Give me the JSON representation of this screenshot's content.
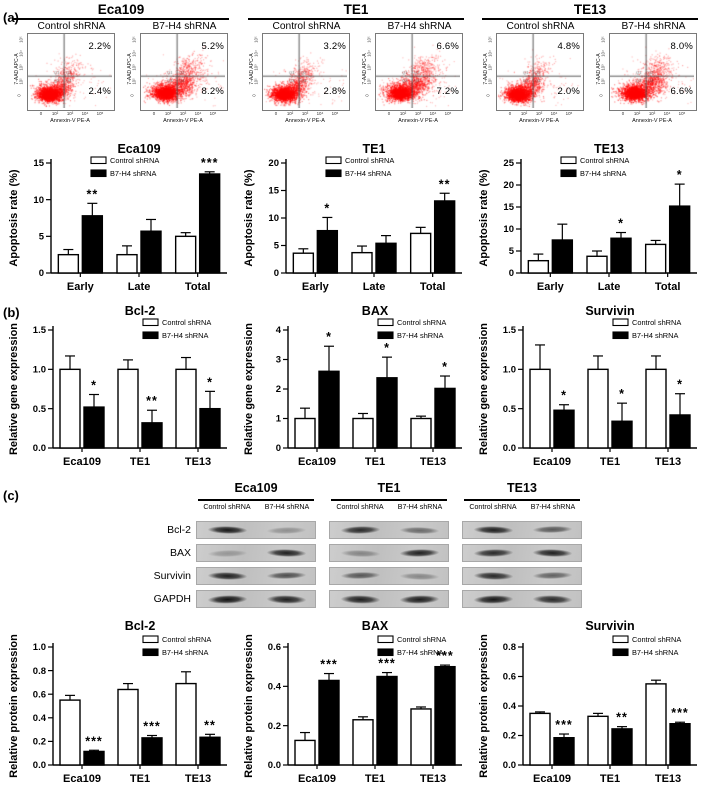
{
  "panel_labels": {
    "a": "(a)",
    "b": "(b)",
    "c": "(c)"
  },
  "legend": {
    "control": "Control shRNA",
    "knockdown": "B7-H4 shRNA"
  },
  "flow": {
    "x_axis": "Annexin-V PE-A",
    "y_axis": "7-AAD APC-A",
    "x_ticks": [
      "0",
      "10²",
      "10³",
      "10⁴",
      "10⁵"
    ],
    "y_ticks": [
      "10⁵",
      "10⁴",
      "10³",
      "10²",
      "0"
    ],
    "groups": [
      {
        "cell_line": "Eca109",
        "plots": [
          {
            "label": "Control shRNA",
            "variant": "control",
            "upper_right_pct": "2.2%",
            "lower_right_pct": "2.4%"
          },
          {
            "label": "B7-H4 shRNA",
            "variant": "knockdown",
            "upper_right_pct": "5.2%",
            "lower_right_pct": "8.2%"
          }
        ]
      },
      {
        "cell_line": "TE1",
        "plots": [
          {
            "label": "Control shRNA",
            "variant": "control",
            "upper_right_pct": "3.2%",
            "lower_right_pct": "2.8%"
          },
          {
            "label": "B7-H4 shRNA",
            "variant": "knockdown",
            "upper_right_pct": "6.6%",
            "lower_right_pct": "7.2%"
          }
        ]
      },
      {
        "cell_line": "TE13",
        "plots": [
          {
            "label": "Control shRNA",
            "variant": "control",
            "upper_right_pct": "4.8%",
            "lower_right_pct": "2.0%"
          },
          {
            "label": "B7-H4 shRNA",
            "variant": "knockdown",
            "upper_right_pct": "8.0%",
            "lower_right_pct": "6.6%"
          }
        ]
      }
    ]
  },
  "chart_data": [
    {
      "id": "apoptosis-eca109",
      "type": "bar",
      "panel": "a",
      "title": "Eca109",
      "ylabel": "Apoptosis rate (%)",
      "ylim": [
        0,
        15
      ],
      "yticks": [
        0,
        5,
        10,
        15
      ],
      "ytick_labels": [
        "0",
        "5",
        "10",
        "15"
      ],
      "categories": [
        "Early",
        "Late",
        "Total"
      ],
      "series": [
        {
          "name": "Control shRNA",
          "values": [
            2.5,
            2.5,
            5.0
          ],
          "errors": [
            0.7,
            1.2,
            0.5
          ]
        },
        {
          "name": "B7-H4 shRNA",
          "values": [
            7.8,
            5.7,
            13.5
          ],
          "errors": [
            1.7,
            1.6,
            0.3
          ]
        }
      ],
      "significance": [
        "**",
        "",
        "***"
      ],
      "legend_position": "top-center",
      "grid": false
    },
    {
      "id": "apoptosis-te1",
      "type": "bar",
      "panel": "a",
      "title": "TE1",
      "ylabel": "Apoptosis rate (%)",
      "ylim": [
        0,
        20
      ],
      "yticks": [
        0,
        5,
        10,
        15,
        20
      ],
      "ytick_labels": [
        "0",
        "5",
        "10",
        "15",
        "20"
      ],
      "categories": [
        "Early",
        "Late",
        "Total"
      ],
      "series": [
        {
          "name": "Control shRNA",
          "values": [
            3.6,
            3.7,
            7.2
          ],
          "errors": [
            0.8,
            1.2,
            1.1
          ]
        },
        {
          "name": "B7-H4 shRNA",
          "values": [
            7.7,
            5.4,
            13.1
          ],
          "errors": [
            2.4,
            1.4,
            1.4
          ]
        }
      ],
      "significance": [
        "*",
        "",
        "**"
      ],
      "legend_position": "top-center",
      "grid": false
    },
    {
      "id": "apoptosis-te13",
      "type": "bar",
      "panel": "a",
      "title": "TE13",
      "ylabel": "Apoptosis rate (%)",
      "ylim": [
        0,
        25
      ],
      "yticks": [
        0,
        5,
        10,
        15,
        20,
        25
      ],
      "ytick_labels": [
        "0",
        "5",
        "10",
        "15",
        "20",
        "25"
      ],
      "categories": [
        "Early",
        "Late",
        "Total"
      ],
      "series": [
        {
          "name": "Control shRNA",
          "values": [
            2.8,
            3.8,
            6.5
          ],
          "errors": [
            1.5,
            1.2,
            0.9
          ]
        },
        {
          "name": "B7-H4 shRNA",
          "values": [
            7.5,
            7.9,
            15.2
          ],
          "errors": [
            3.6,
            1.3,
            5.0
          ]
        }
      ],
      "significance": [
        "",
        "*",
        "*"
      ],
      "legend_position": "top-center",
      "grid": false
    },
    {
      "id": "gene-bcl2",
      "type": "bar",
      "panel": "b",
      "title": "Bcl-2",
      "ylabel": "Relative gene expression",
      "ylim": [
        0,
        1.5
      ],
      "yticks": [
        0,
        0.5,
        1.0,
        1.5
      ],
      "ytick_labels": [
        "0.0",
        "0.5",
        "1.0",
        "1.5"
      ],
      "categories": [
        "Eca109",
        "TE1",
        "TE13"
      ],
      "series": [
        {
          "name": "Control shRNA",
          "values": [
            1.0,
            1.0,
            1.0
          ],
          "errors": [
            0.17,
            0.12,
            0.15
          ]
        },
        {
          "name": "B7-H4 shRNA",
          "values": [
            0.52,
            0.32,
            0.5
          ],
          "errors": [
            0.16,
            0.16,
            0.22
          ]
        }
      ],
      "significance": [
        "*",
        "**",
        "*"
      ],
      "legend_position": "top-right",
      "grid": false
    },
    {
      "id": "gene-bax",
      "type": "bar",
      "panel": "b",
      "title": "BAX",
      "ylabel": "Relative gene expression",
      "ylim": [
        0,
        4
      ],
      "yticks": [
        0,
        1,
        2,
        3,
        4
      ],
      "ytick_labels": [
        "0",
        "1",
        "2",
        "3",
        "4"
      ],
      "categories": [
        "Eca109",
        "TE1",
        "TE13"
      ],
      "series": [
        {
          "name": "Control shRNA",
          "values": [
            1.0,
            1.0,
            1.0
          ],
          "errors": [
            0.35,
            0.17,
            0.08
          ]
        },
        {
          "name": "B7-H4 shRNA",
          "values": [
            2.6,
            2.38,
            2.02
          ],
          "errors": [
            0.85,
            0.7,
            0.42
          ]
        }
      ],
      "significance": [
        "*",
        "*",
        "*"
      ],
      "legend_position": "top-right",
      "grid": false
    },
    {
      "id": "gene-survivin",
      "type": "bar",
      "panel": "b",
      "title": "Survivin",
      "ylabel": "Relative gene expression",
      "ylim": [
        0,
        1.5
      ],
      "yticks": [
        0,
        0.5,
        1.0,
        1.5
      ],
      "ytick_labels": [
        "0.0",
        "0.5",
        "1.0",
        "1.5"
      ],
      "categories": [
        "Eca109",
        "TE1",
        "TE13"
      ],
      "series": [
        {
          "name": "Control shRNA",
          "values": [
            1.0,
            1.0,
            1.0
          ],
          "errors": [
            0.31,
            0.17,
            0.17
          ]
        },
        {
          "name": "B7-H4 shRNA",
          "values": [
            0.48,
            0.34,
            0.42
          ],
          "errors": [
            0.07,
            0.23,
            0.27
          ]
        }
      ],
      "significance": [
        "*",
        "*",
        "*"
      ],
      "legend_position": "top-right",
      "grid": false
    },
    {
      "id": "protein-bcl2",
      "type": "bar",
      "panel": "c",
      "title": "Bcl-2",
      "ylabel": "Relative protein expression",
      "ylim": [
        0,
        1.0
      ],
      "yticks": [
        0,
        0.2,
        0.4,
        0.6,
        0.8,
        1.0
      ],
      "ytick_labels": [
        "0.0",
        "0.2",
        "0.4",
        "0.6",
        "0.8",
        "1.0"
      ],
      "categories": [
        "Eca109",
        "TE1",
        "TE13"
      ],
      "series": [
        {
          "name": "Control shRNA",
          "values": [
            0.55,
            0.64,
            0.69
          ],
          "errors": [
            0.04,
            0.05,
            0.1
          ]
        },
        {
          "name": "B7-H4 shRNA",
          "values": [
            0.115,
            0.23,
            0.235
          ],
          "errors": [
            0.01,
            0.02,
            0.025
          ]
        }
      ],
      "significance": [
        "***",
        "***",
        "**"
      ],
      "legend_position": "top-right",
      "grid": false
    },
    {
      "id": "protein-bax",
      "type": "bar",
      "panel": "c",
      "title": "BAX",
      "ylabel": "Relative protein expression",
      "ylim": [
        0,
        0.6
      ],
      "yticks": [
        0,
        0.2,
        0.4,
        0.6
      ],
      "ytick_labels": [
        "0.0",
        "0.2",
        "0.4",
        "0.6"
      ],
      "categories": [
        "Eca109",
        "TE1",
        "TE13"
      ],
      "series": [
        {
          "name": "Control shRNA",
          "values": [
            0.125,
            0.23,
            0.285
          ],
          "errors": [
            0.04,
            0.015,
            0.01
          ]
        },
        {
          "name": "B7-H4 shRNA",
          "values": [
            0.43,
            0.45,
            0.5
          ],
          "errors": [
            0.035,
            0.02,
            0.008
          ]
        }
      ],
      "significance": [
        "***",
        "***",
        "***"
      ],
      "legend_position": "top-right",
      "grid": false
    },
    {
      "id": "protein-survivin",
      "type": "bar",
      "panel": "c",
      "title": "Survivin",
      "ylabel": "Relative protein expression",
      "ylim": [
        0,
        0.8
      ],
      "yticks": [
        0,
        0.2,
        0.4,
        0.6,
        0.8
      ],
      "ytick_labels": [
        "0.0",
        "0.2",
        "0.4",
        "0.6",
        "0.8"
      ],
      "categories": [
        "Eca109",
        "TE1",
        "TE13"
      ],
      "series": [
        {
          "name": "Control shRNA",
          "values": [
            0.35,
            0.33,
            0.55
          ],
          "errors": [
            0.01,
            0.02,
            0.025
          ]
        },
        {
          "name": "B7-H4 shRNA",
          "values": [
            0.185,
            0.245,
            0.28
          ],
          "errors": [
            0.025,
            0.015,
            0.01
          ]
        }
      ],
      "significance": [
        "***",
        "**",
        "***"
      ],
      "legend_position": "top-right",
      "grid": false
    }
  ],
  "blots": {
    "row_labels": [
      "Bcl-2",
      "BAX",
      "Survivin",
      "GAPDH"
    ],
    "lane_labels": [
      "Control shRNA",
      "B7-H4 shRNA"
    ],
    "groups": [
      {
        "cell_line": "Eca109",
        "band_darkness": [
          [
            0.95,
            0.3
          ],
          [
            0.25,
            0.9
          ],
          [
            0.9,
            0.65
          ],
          [
            0.97,
            0.9
          ]
        ]
      },
      {
        "cell_line": "TE1",
        "band_darkness": [
          [
            0.85,
            0.5
          ],
          [
            0.35,
            0.9
          ],
          [
            0.6,
            0.35
          ],
          [
            0.9,
            0.92
          ]
        ]
      },
      {
        "cell_line": "TE13",
        "band_darkness": [
          [
            0.9,
            0.6
          ],
          [
            0.85,
            0.9
          ],
          [
            0.85,
            0.55
          ],
          [
            0.95,
            0.85
          ]
        ]
      }
    ]
  }
}
